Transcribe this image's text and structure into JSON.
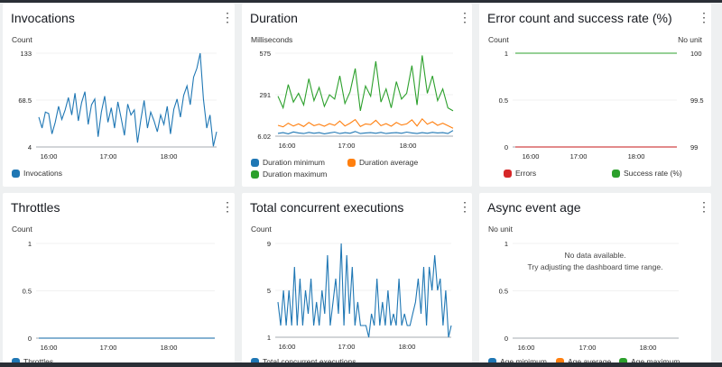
{
  "colors": {
    "blue": "#1f77b4",
    "orange": "#ff7f0e",
    "green": "#2ca02c",
    "red": "#d62728"
  },
  "panels": {
    "invocations": {
      "title": "Invocations",
      "unit": "Count",
      "yticks": [
        "133",
        "68.5",
        "4"
      ],
      "xticks": [
        "16:00",
        "17:00",
        "18:00"
      ],
      "legend": [
        "Invocations"
      ],
      "chart_data": {
        "type": "line",
        "ylim": [
          4,
          133
        ],
        "series": [
          {
            "name": "Invocations",
            "values": [
              45,
              30,
              52,
              50,
              22,
              38,
              60,
              42,
              55,
              72,
              48,
              78,
              40,
              65,
              80,
              35,
              62,
              70,
              18,
              52,
              74,
              38,
              58,
              30,
              66,
              44,
              20,
              63,
              48,
              55,
              10,
              42,
              68,
              30,
              52,
              40,
              25,
              48,
              35,
              60,
              22,
              56,
              70,
              45,
              75,
              88,
              62,
              100,
              112,
              133,
              70,
              30,
              48,
              5,
              25
            ]
          }
        ]
      }
    },
    "duration": {
      "title": "Duration",
      "unit": "Milliseconds",
      "yticks": [
        "575",
        "291",
        "6.02"
      ],
      "xticks": [
        "16:00",
        "17:00",
        "18:00"
      ],
      "legend": [
        "Duration minimum",
        "Duration average",
        "Duration maximum"
      ],
      "chart_data": {
        "type": "line",
        "ylim": [
          6.02,
          575
        ],
        "series": [
          {
            "name": "Duration minimum",
            "values": [
              25,
              30,
              22,
              35,
              28,
              24,
              32,
              26,
              30,
              22,
              28,
              34,
              24,
              30,
              26,
              38,
              24,
              28,
              30,
              26,
              32,
              24,
              28,
              30,
              26,
              34,
              28,
              24,
              30,
              26,
              32,
              28,
              30,
              24,
              45
            ]
          },
          {
            "name": "Duration average",
            "values": [
              80,
              70,
              95,
              75,
              90,
              72,
              100,
              78,
              88,
              74,
              92,
              80,
              110,
              76,
              95,
              120,
              72,
              90,
              85,
              115,
              78,
              92,
              74,
              100,
              82,
              90,
              118,
              76,
              125,
              88,
              105,
              80,
              95,
              78,
              60
            ]
          },
          {
            "name": "Duration maximum",
            "values": [
              280,
              200,
              360,
              240,
              300,
              220,
              400,
              250,
              340,
              210,
              290,
              260,
              420,
              230,
              310,
              470,
              180,
              350,
              280,
              520,
              240,
              330,
              200,
              380,
              260,
              300,
              490,
              220,
              560,
              300,
              420,
              250,
              330,
              200,
              180
            ]
          }
        ]
      }
    },
    "errors": {
      "title": "Error count and success rate (%)",
      "unit": "Count",
      "unit_right": "No unit",
      "yticks": [
        "1",
        "0.5",
        "0"
      ],
      "yticks_right": [
        "100",
        "99.5",
        "99"
      ],
      "xticks": [
        "16:00",
        "17:00",
        "18:00"
      ],
      "legend": [
        "Errors",
        "Success rate (%)"
      ],
      "chart_data": {
        "type": "line",
        "ylim": [
          0,
          1
        ],
        "ylim_right": [
          99,
          100
        ],
        "series": [
          {
            "name": "Errors",
            "values": [
              0,
              0
            ]
          },
          {
            "name": "Success rate (%)",
            "values": [
              100,
              100
            ]
          }
        ]
      }
    },
    "throttles": {
      "title": "Throttles",
      "unit": "Count",
      "yticks": [
        "1",
        "0.5",
        "0"
      ],
      "xticks": [
        "16:00",
        "17:00",
        "18:00"
      ],
      "legend": [
        "Throttles"
      ],
      "chart_data": {
        "type": "line",
        "ylim": [
          0,
          1
        ],
        "series": [
          {
            "name": "Throttles",
            "values": [
              0,
              0
            ]
          }
        ]
      }
    },
    "concurrent": {
      "title": "Total concurrent executions",
      "unit": "Count",
      "yticks": [
        "9",
        "5",
        "1"
      ],
      "xticks": [
        "16:00",
        "17:00",
        "18:00"
      ],
      "legend": [
        "Total concurrent executions"
      ],
      "chart_data": {
        "type": "line",
        "ylim": [
          1,
          9
        ],
        "series": [
          {
            "name": "Total concurrent executions",
            "values": [
              4,
              2,
              5,
              2,
              5,
              2,
              7,
              2,
              6,
              2,
              5,
              3,
              6,
              2,
              4,
              2,
              5,
              3,
              8,
              2,
              4,
              6,
              3,
              9,
              2,
              8,
              3,
              7,
              2,
              4,
              2,
              2,
              2,
              1,
              3,
              2,
              6,
              2,
              4,
              2,
              5,
              2,
              3,
              2,
              6,
              2,
              3,
              2,
              2,
              3,
              4,
              6,
              3,
              7,
              2,
              7,
              5,
              8,
              5,
              6,
              2,
              5,
              1,
              2
            ]
          }
        ]
      }
    },
    "async": {
      "title": "Async event age",
      "unit": "No unit",
      "yticks": [
        "1",
        "0.5",
        "0"
      ],
      "xticks": [
        "16:00",
        "17:00",
        "18:00"
      ],
      "legend": [
        "Age minimum",
        "Age average",
        "Age maximum"
      ],
      "no_data_1": "No data available.",
      "no_data_2": "Try adjusting the dashboard time range.",
      "chart_data": {
        "type": "line",
        "ylim": [
          0,
          1
        ],
        "series": []
      }
    }
  }
}
